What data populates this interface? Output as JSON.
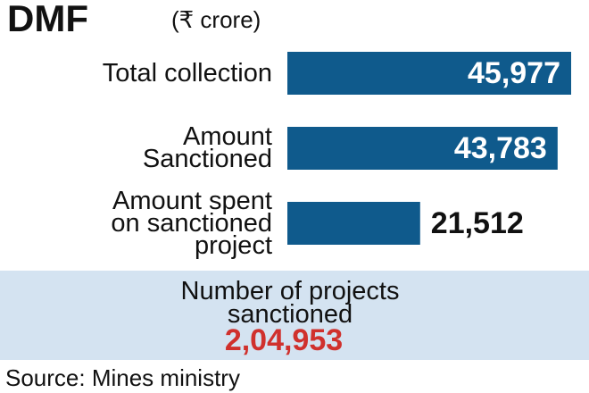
{
  "chart_data": {
    "type": "bar",
    "orientation": "horizontal",
    "title": "DMF",
    "subtitle": "(₹ crore)",
    "categories": [
      "Total collection",
      "Amount Sanctioned",
      "Amount spent on sanctioned project"
    ],
    "values": [
      45977,
      43783,
      21512
    ],
    "value_labels": [
      "45,977",
      "43,783",
      "21,512"
    ],
    "color": "#0f5a8c",
    "callout": {
      "label": "Number of projects sanctioned",
      "value": "2,04,953"
    },
    "source": "Source: Mines ministry"
  }
}
